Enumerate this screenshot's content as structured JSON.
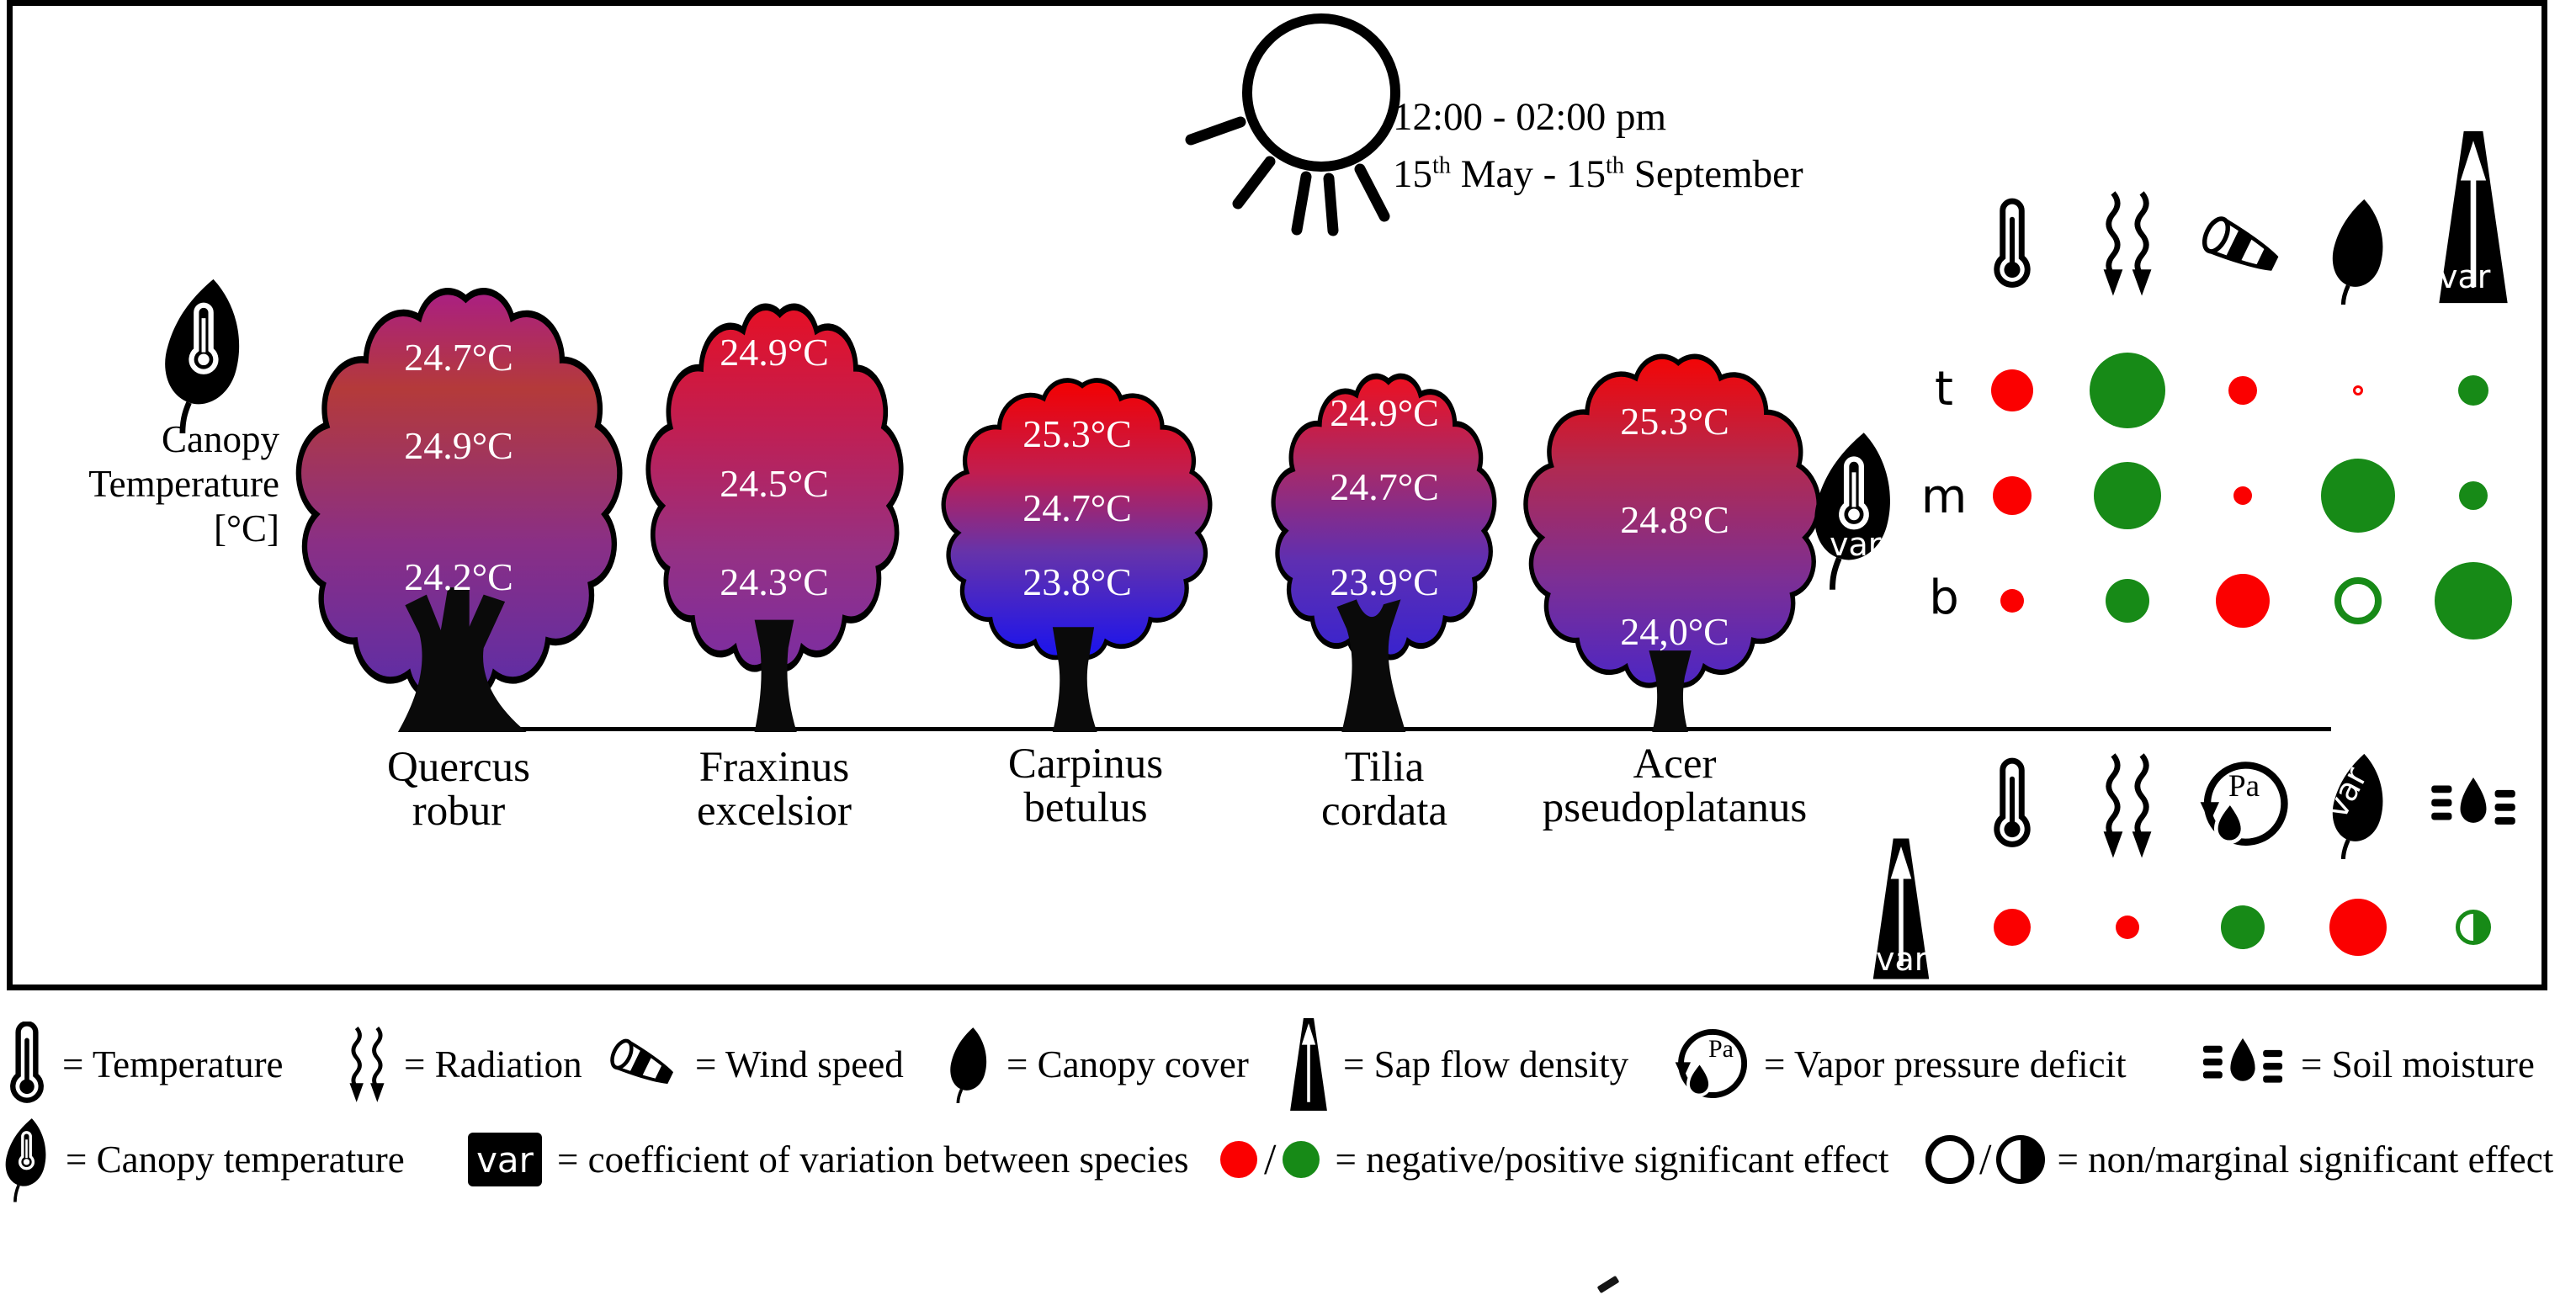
{
  "figure": {
    "title_time": "12:00 - 02:00 pm",
    "date_parts": [
      "15",
      "th",
      " May - 15",
      "th",
      " September"
    ]
  },
  "axis_label": {
    "lines": [
      "Canopy",
      "Temperature",
      "[°C]"
    ]
  },
  "labels": {
    "var": "var",
    "pa": "Pa"
  },
  "palette": {
    "negative": "#fb0000",
    "positive": "#178a17",
    "ink": "#000000"
  },
  "trees": [
    {
      "species": [
        "Quercus",
        "robur"
      ],
      "temps": [
        "24.7°C",
        "24.9°C",
        "24.2°C"
      ],
      "colors": [
        "#aa1f83",
        "#b43a3a",
        "#8a2f85",
        "#5c2da7"
      ]
    },
    {
      "species": [
        "Fraxinus",
        "excelsior"
      ],
      "temps": [
        "24.9°C",
        "24.5°C",
        "24.3°C"
      ],
      "colors": [
        "#e51025",
        "#c01f53",
        "#953184",
        "#7b2da2"
      ]
    },
    {
      "species": [
        "Carpinus",
        "betulus"
      ],
      "temps": [
        "25.3°C",
        "24.7°C",
        "23.8°C"
      ],
      "colors": [
        "#f40000",
        "#c21d4e",
        "#6633aa",
        "#1a13ee"
      ]
    },
    {
      "species": [
        "Tilia",
        "cordata"
      ],
      "temps": [
        "24.9°C",
        "24.7°C",
        "23.9°C"
      ],
      "colors": [
        "#ee1020",
        "#a62a6a",
        "#5e2fb2",
        "#3823cf"
      ]
    },
    {
      "species": [
        "Acer",
        "pseudoplatanus"
      ],
      "temps": [
        "25.3°C",
        "24.8°C",
        "24,0°C"
      ],
      "colors": [
        "#f40505",
        "#b02a52",
        "#7c2f95",
        "#4d26c4"
      ]
    }
  ],
  "matrix": {
    "row_labels": [
      "t",
      "m",
      "b"
    ],
    "columns": [
      "temperature",
      "radiation",
      "wind-speed",
      "canopy-cover-var",
      "sap-flow-density-var"
    ],
    "dots": [
      [
        {
          "color": "#fb0000",
          "size": 50,
          "type": "filled"
        },
        {
          "color": "#178a17",
          "size": 90,
          "type": "filled"
        },
        {
          "color": "#fb0000",
          "size": 34,
          "type": "filled"
        },
        {
          "color": "#fb0000",
          "size": 12,
          "type": "ring"
        },
        {
          "color": "#178a17",
          "size": 36,
          "type": "filled"
        }
      ],
      [
        {
          "color": "#fb0000",
          "size": 46,
          "type": "filled"
        },
        {
          "color": "#178a17",
          "size": 80,
          "type": "filled"
        },
        {
          "color": "#fb0000",
          "size": 22,
          "type": "filled"
        },
        {
          "color": "#178a17",
          "size": 88,
          "type": "filled"
        },
        {
          "color": "#178a17",
          "size": 34,
          "type": "filled"
        }
      ],
      [
        {
          "color": "#fb0000",
          "size": 28,
          "type": "filled"
        },
        {
          "color": "#178a17",
          "size": 52,
          "type": "filled"
        },
        {
          "color": "#fb0000",
          "size": 64,
          "type": "filled"
        },
        {
          "color": "#178a17",
          "size": 56,
          "type": "ring"
        },
        {
          "color": "#178a17",
          "size": 92,
          "type": "filled"
        }
      ]
    ]
  },
  "bottom_matrix": {
    "row_icon": "sap-flow-density-var",
    "columns": [
      "temperature",
      "radiation",
      "vapor-pressure-deficit",
      "canopy-cover-var",
      "soil-moisture"
    ],
    "dots": [
      [
        {
          "color": "#fb0000",
          "size": 44,
          "type": "filled"
        },
        {
          "color": "#fb0000",
          "size": 28,
          "type": "filled"
        },
        {
          "color": "#178a17",
          "size": 52,
          "type": "filled"
        },
        {
          "color": "#fb0000",
          "size": 68,
          "type": "filled"
        },
        {
          "color": "#178a17",
          "size": 42,
          "type": "half"
        }
      ]
    ]
  },
  "legend1": [
    {
      "icon": "thermometer",
      "label": "= Temperature"
    },
    {
      "icon": "radiation",
      "label": "= Radiation"
    },
    {
      "icon": "windsock",
      "label": "= Wind speed"
    },
    {
      "icon": "leaf",
      "label": "= Canopy cover"
    },
    {
      "icon": "sap-flow",
      "label": "= Sap flow density"
    },
    {
      "icon": "vapor-pressure-deficit",
      "label": "= Vapor pressure deficit"
    },
    {
      "icon": "soil-moisture",
      "label": "= Soil moisture"
    }
  ],
  "legend2": {
    "canopy_temperature_label": "= Canopy temperature",
    "var_text": "var",
    "var_label": "= coefficient of variation between species",
    "slash": "/",
    "neg_pos_label": "= negative/positive significant effect",
    "non_marginal_label": "= non/marginal significant effect"
  }
}
